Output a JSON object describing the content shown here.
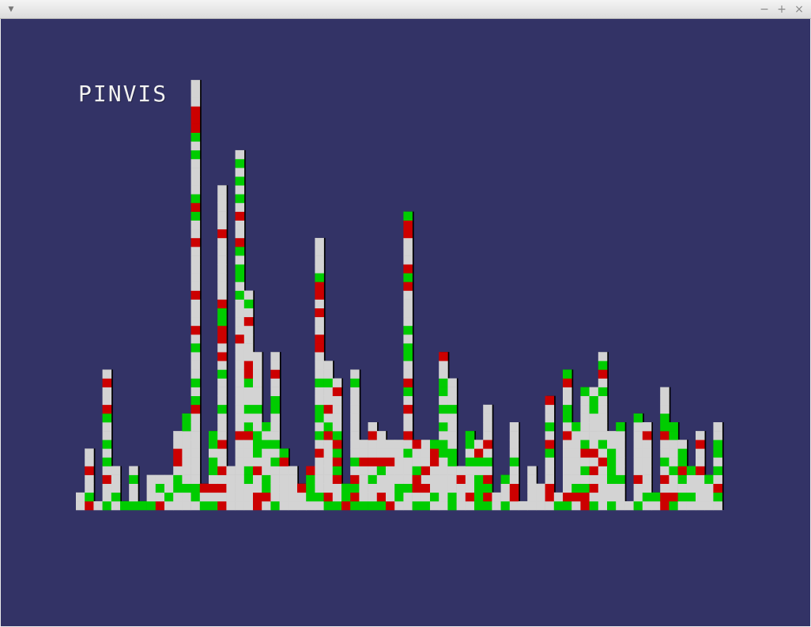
{
  "window": {
    "menu_icon": "chevron-down-icon",
    "minimize_icon": "minimize-icon",
    "maximize_icon": "maximize-icon",
    "close_icon": "close-icon",
    "menu_glyph": "▼",
    "minimize_glyph": "−",
    "maximize_glyph": "+",
    "close_glyph": "×"
  },
  "app": {
    "title": "PINVIS"
  },
  "colors": {
    "background": "#333366",
    "neutral": "#d3d3d3",
    "green": "#00cc00",
    "red": "#cc0000",
    "outline": "#000000"
  },
  "visualization": {
    "column_heights": [
      2,
      7,
      1,
      16,
      5,
      1,
      5,
      1,
      4,
      4,
      4,
      9,
      11,
      49,
      3,
      9,
      37,
      5,
      41,
      25,
      18,
      10,
      18,
      7,
      5,
      3,
      5,
      31,
      17,
      15,
      3,
      16,
      8,
      10,
      9,
      8,
      8,
      34,
      8,
      8,
      8,
      18,
      15,
      5,
      9,
      8,
      12,
      2,
      4,
      10,
      1,
      5,
      3,
      13,
      2,
      16,
      10,
      14,
      14,
      18,
      9,
      10,
      1,
      11,
      10,
      2,
      14,
      10,
      8,
      5,
      9,
      4,
      10
    ],
    "pattern_seed": 7,
    "green_fraction": 0.22,
    "red_fraction": 0.13
  }
}
